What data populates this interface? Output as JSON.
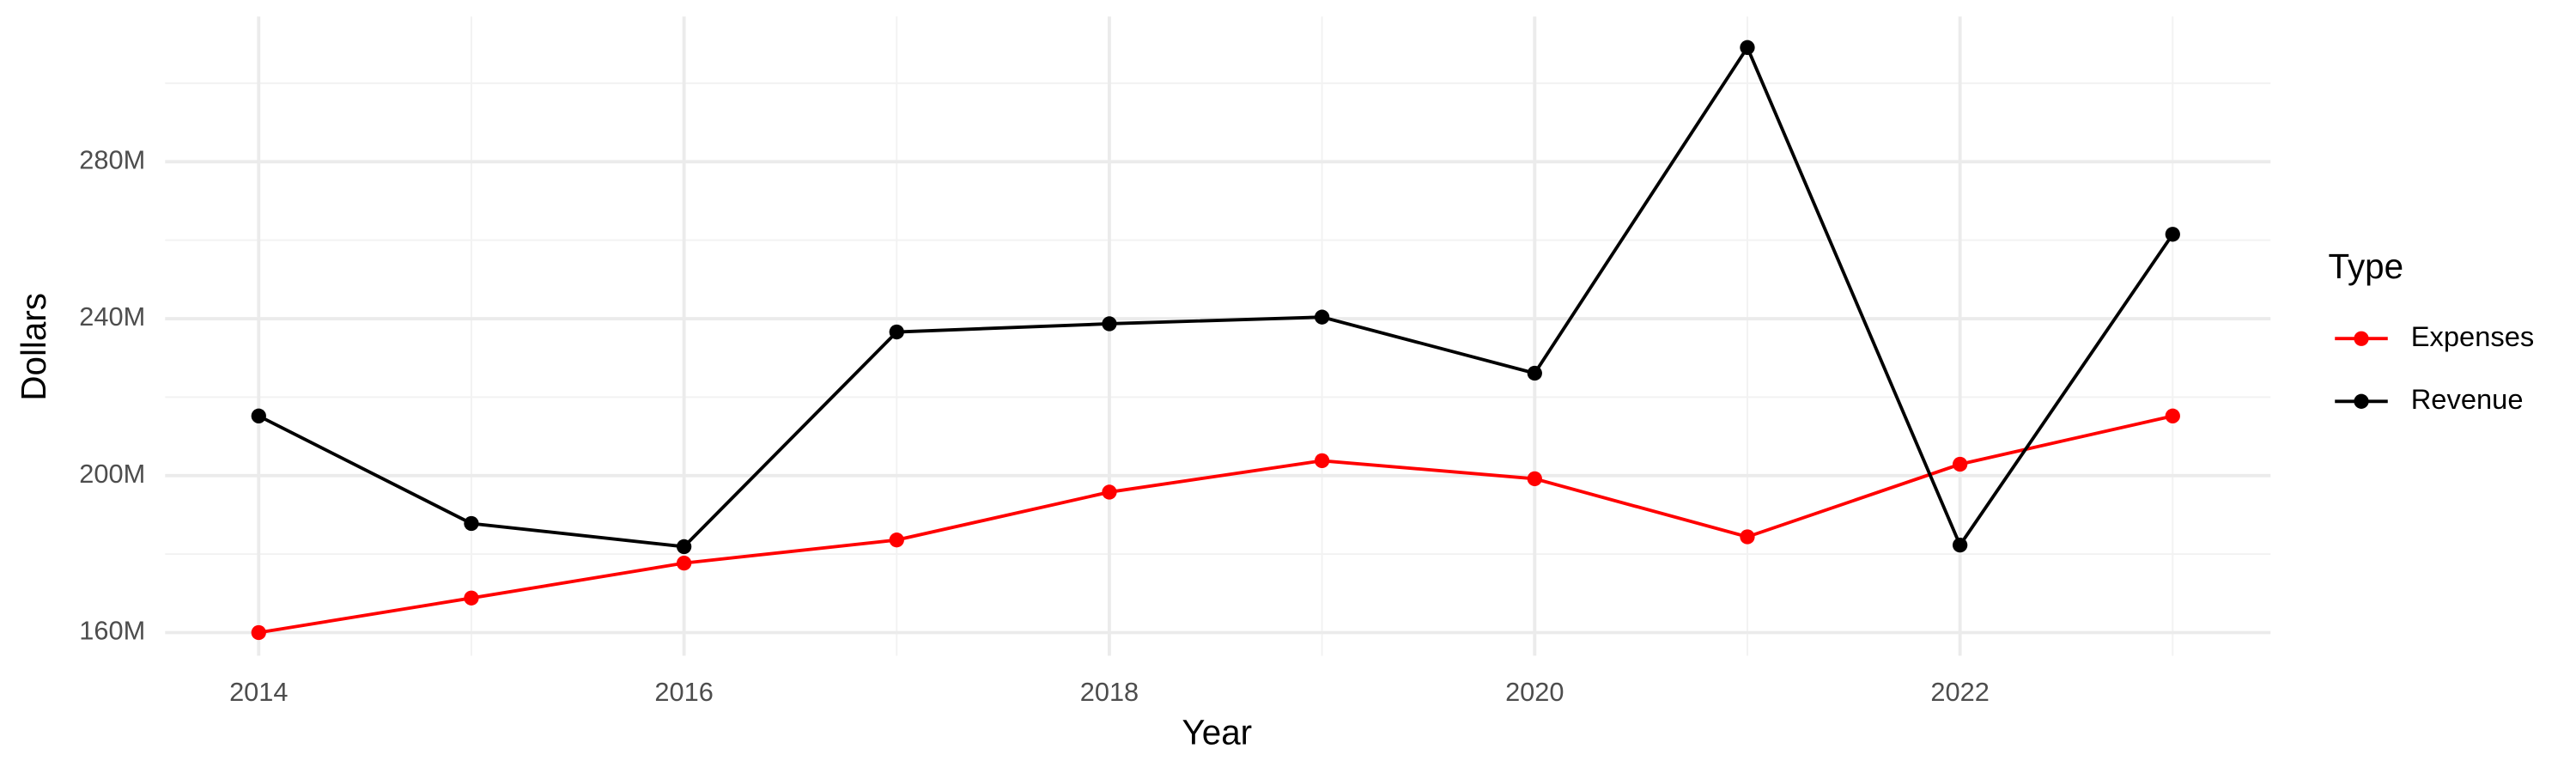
{
  "chart_data": {
    "type": "line",
    "x_label": "Year",
    "y_label": "Dollars",
    "legend_title": "Type",
    "legend_position": "right",
    "x": [
      2014,
      2015,
      2016,
      2017,
      2018,
      2019,
      2020,
      2021,
      2022,
      2023
    ],
    "series": [
      {
        "name": "Expenses",
        "color": "#ff0000",
        "values": [
          160000000,
          168800000,
          177700000,
          183600000,
          195800000,
          203800000,
          199200000,
          184400000,
          202900000,
          215200000
        ]
      },
      {
        "name": "Revenue",
        "color": "#000000",
        "values": [
          215200000,
          187800000,
          181900000,
          236600000,
          238700000,
          240400000,
          226100000,
          309100000,
          182300000,
          261500000
        ]
      }
    ],
    "xlim": [
      2013.56,
      2023.46
    ],
    "ylim": [
      154100000,
      317000000
    ],
    "xticks": [
      2014,
      2016,
      2018,
      2020,
      2022
    ],
    "xminor": [
      2015,
      2017,
      2019,
      2021,
      2023
    ],
    "yticks": [
      {
        "value": 160000000,
        "label": "160M"
      },
      {
        "value": 200000000,
        "label": "200M"
      },
      {
        "value": 240000000,
        "label": "240M"
      },
      {
        "value": 280000000,
        "label": "280M"
      }
    ],
    "yminor": [
      180000000,
      220000000,
      260000000,
      300000000
    ],
    "grid": true
  }
}
